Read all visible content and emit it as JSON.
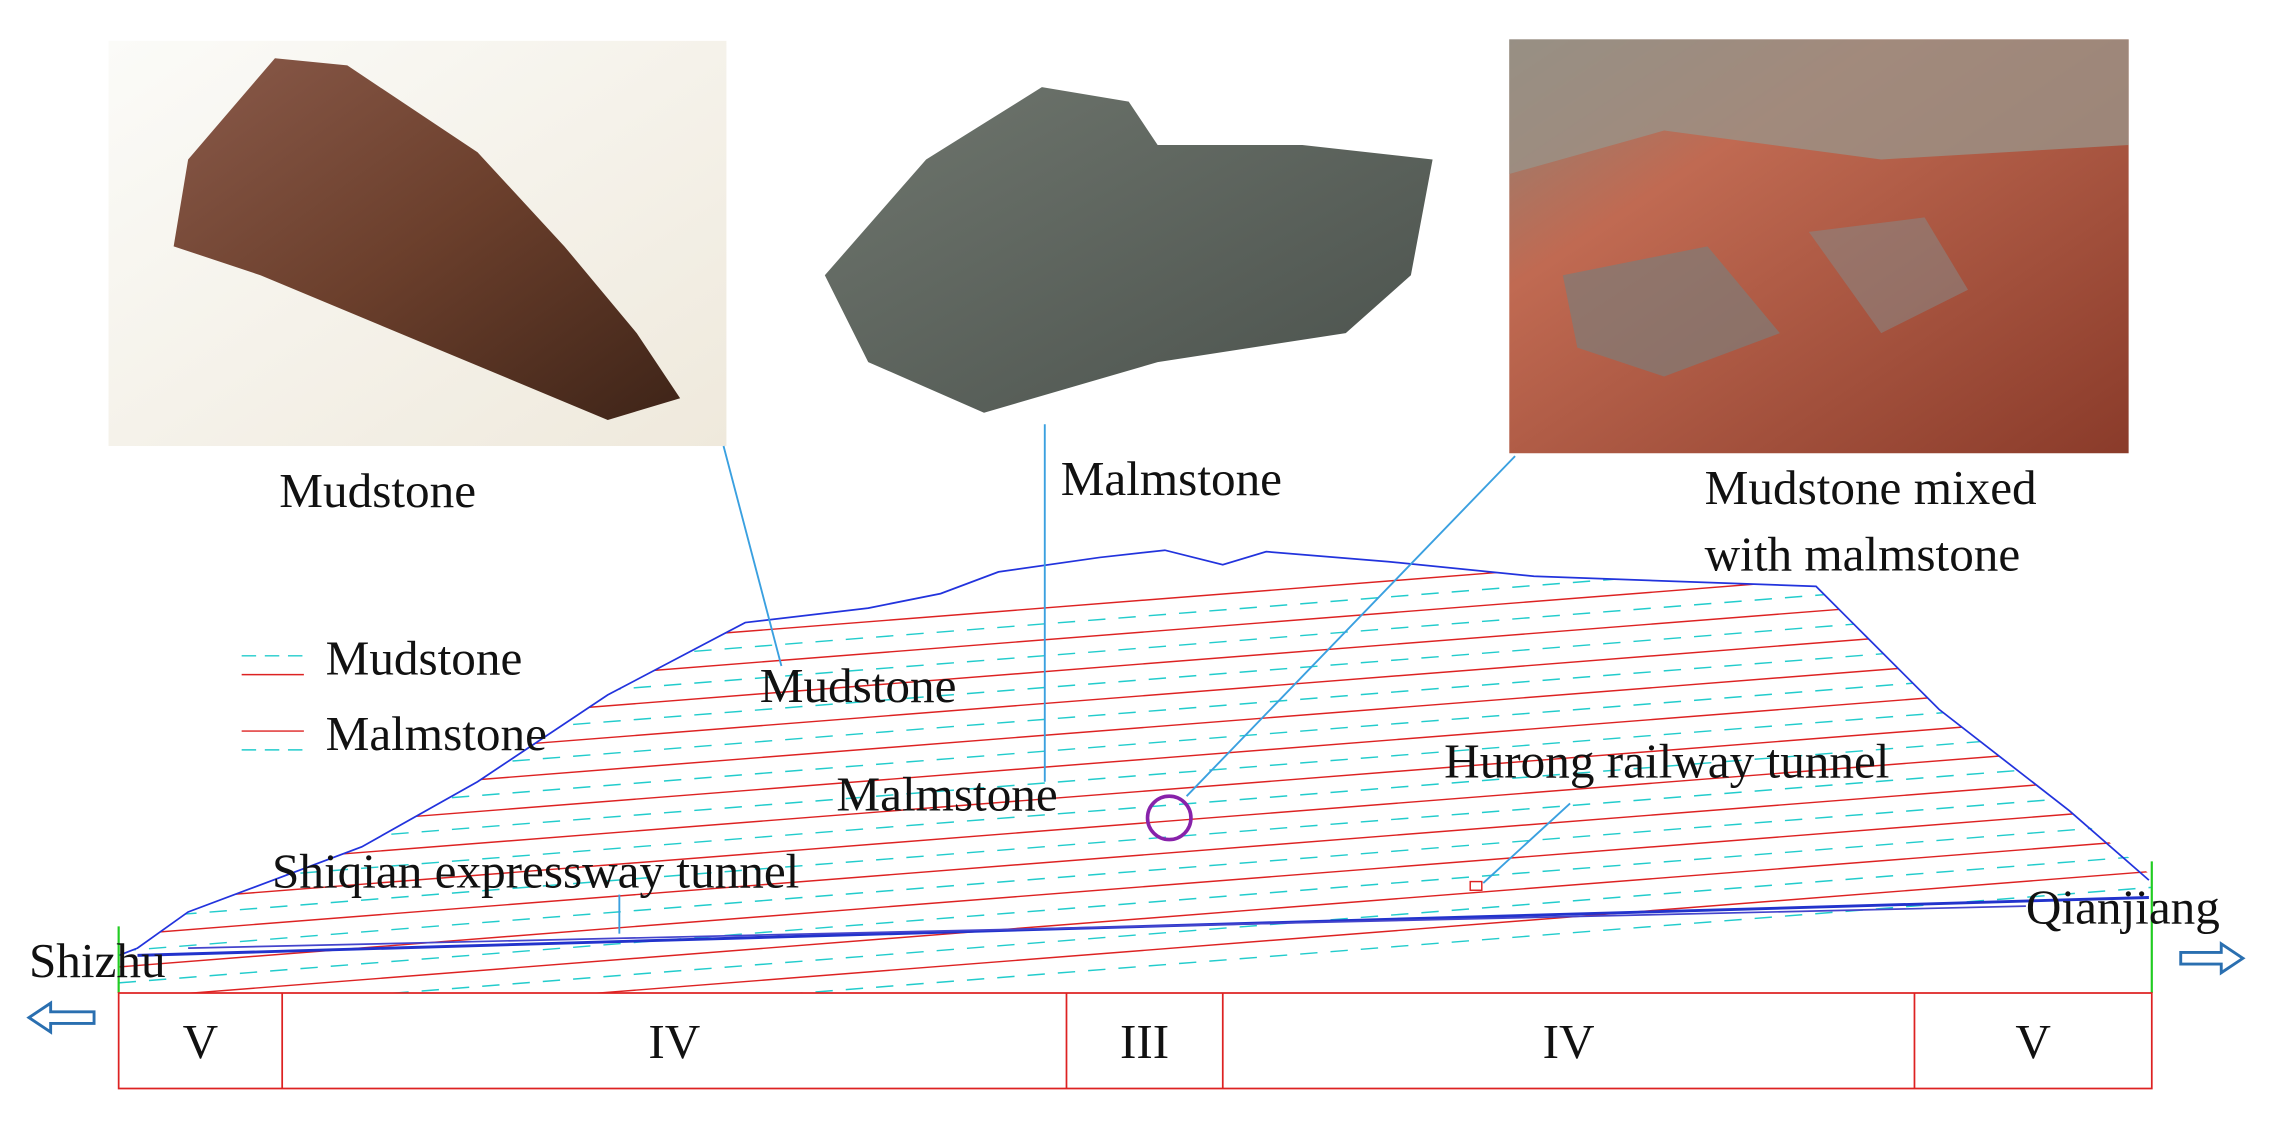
{
  "photos": [
    {
      "label": [
        "Mudstone"
      ]
    },
    {
      "label": [
        "Malmstone"
      ]
    },
    {
      "label": [
        "Mudstone mixed",
        "with malmstone"
      ]
    }
  ],
  "legend": [
    "Mudstone",
    "Malmstone"
  ],
  "section_labels": {
    "mudstone": "Mudstone",
    "malmstone": "Malmstone",
    "railway_tunnel": "Hurong railway tunnel",
    "expressway_tunnel": "Shiqian expressway tunnel"
  },
  "ends": {
    "left": "Shizhu",
    "right": "Qianjiang"
  },
  "grades": [
    "V",
    "IV",
    "III",
    "IV",
    "V"
  ]
}
